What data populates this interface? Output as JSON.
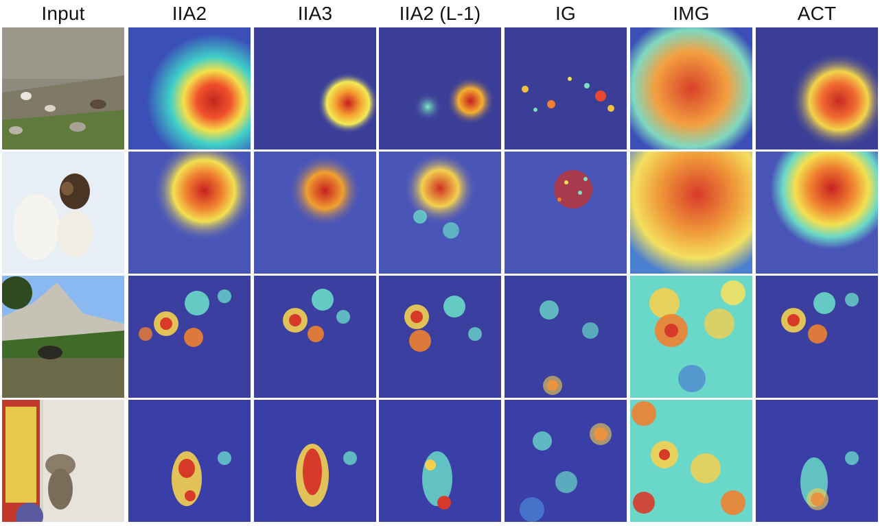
{
  "figure": {
    "columns": [
      "Input",
      "IIA2",
      "IIA3",
      "IIA2 (L-1)",
      "IG",
      "IMG",
      "ACT"
    ],
    "rows": [
      {
        "scene": "hillside with goats",
        "input_icon": "goats-on-hillside-photo",
        "heatmap_focus": [
          "goat-cluster-right",
          "goat-cluster-right",
          "multiple-goats",
          "scattered-goats",
          "broad-center",
          "goat-cluster-right"
        ]
      },
      {
        "scene": "three dogs in snow",
        "input_icon": "dogs-in-snow-photo",
        "heatmap_focus": [
          "brown-dog",
          "brown-dog",
          "brown-dog-and-others",
          "noisy-brown-dog",
          "broad-all-dogs",
          "brown-dog"
        ]
      },
      {
        "scene": "mountain meadow with cow",
        "input_icon": "mountain-meadow-photo",
        "heatmap_focus": [
          "hillside-patches",
          "hillside-patches",
          "hillside-patches",
          "sparse-blobs",
          "broad-patches",
          "hillside-patches"
        ]
      },
      {
        "scene": "cat in store aisle",
        "input_icon": "cat-in-aisle-photo",
        "heatmap_focus": [
          "cat-body",
          "cat-body",
          "cat-edges",
          "scattered-blobs",
          "broad-patches",
          "cat-lower"
        ]
      }
    ]
  }
}
